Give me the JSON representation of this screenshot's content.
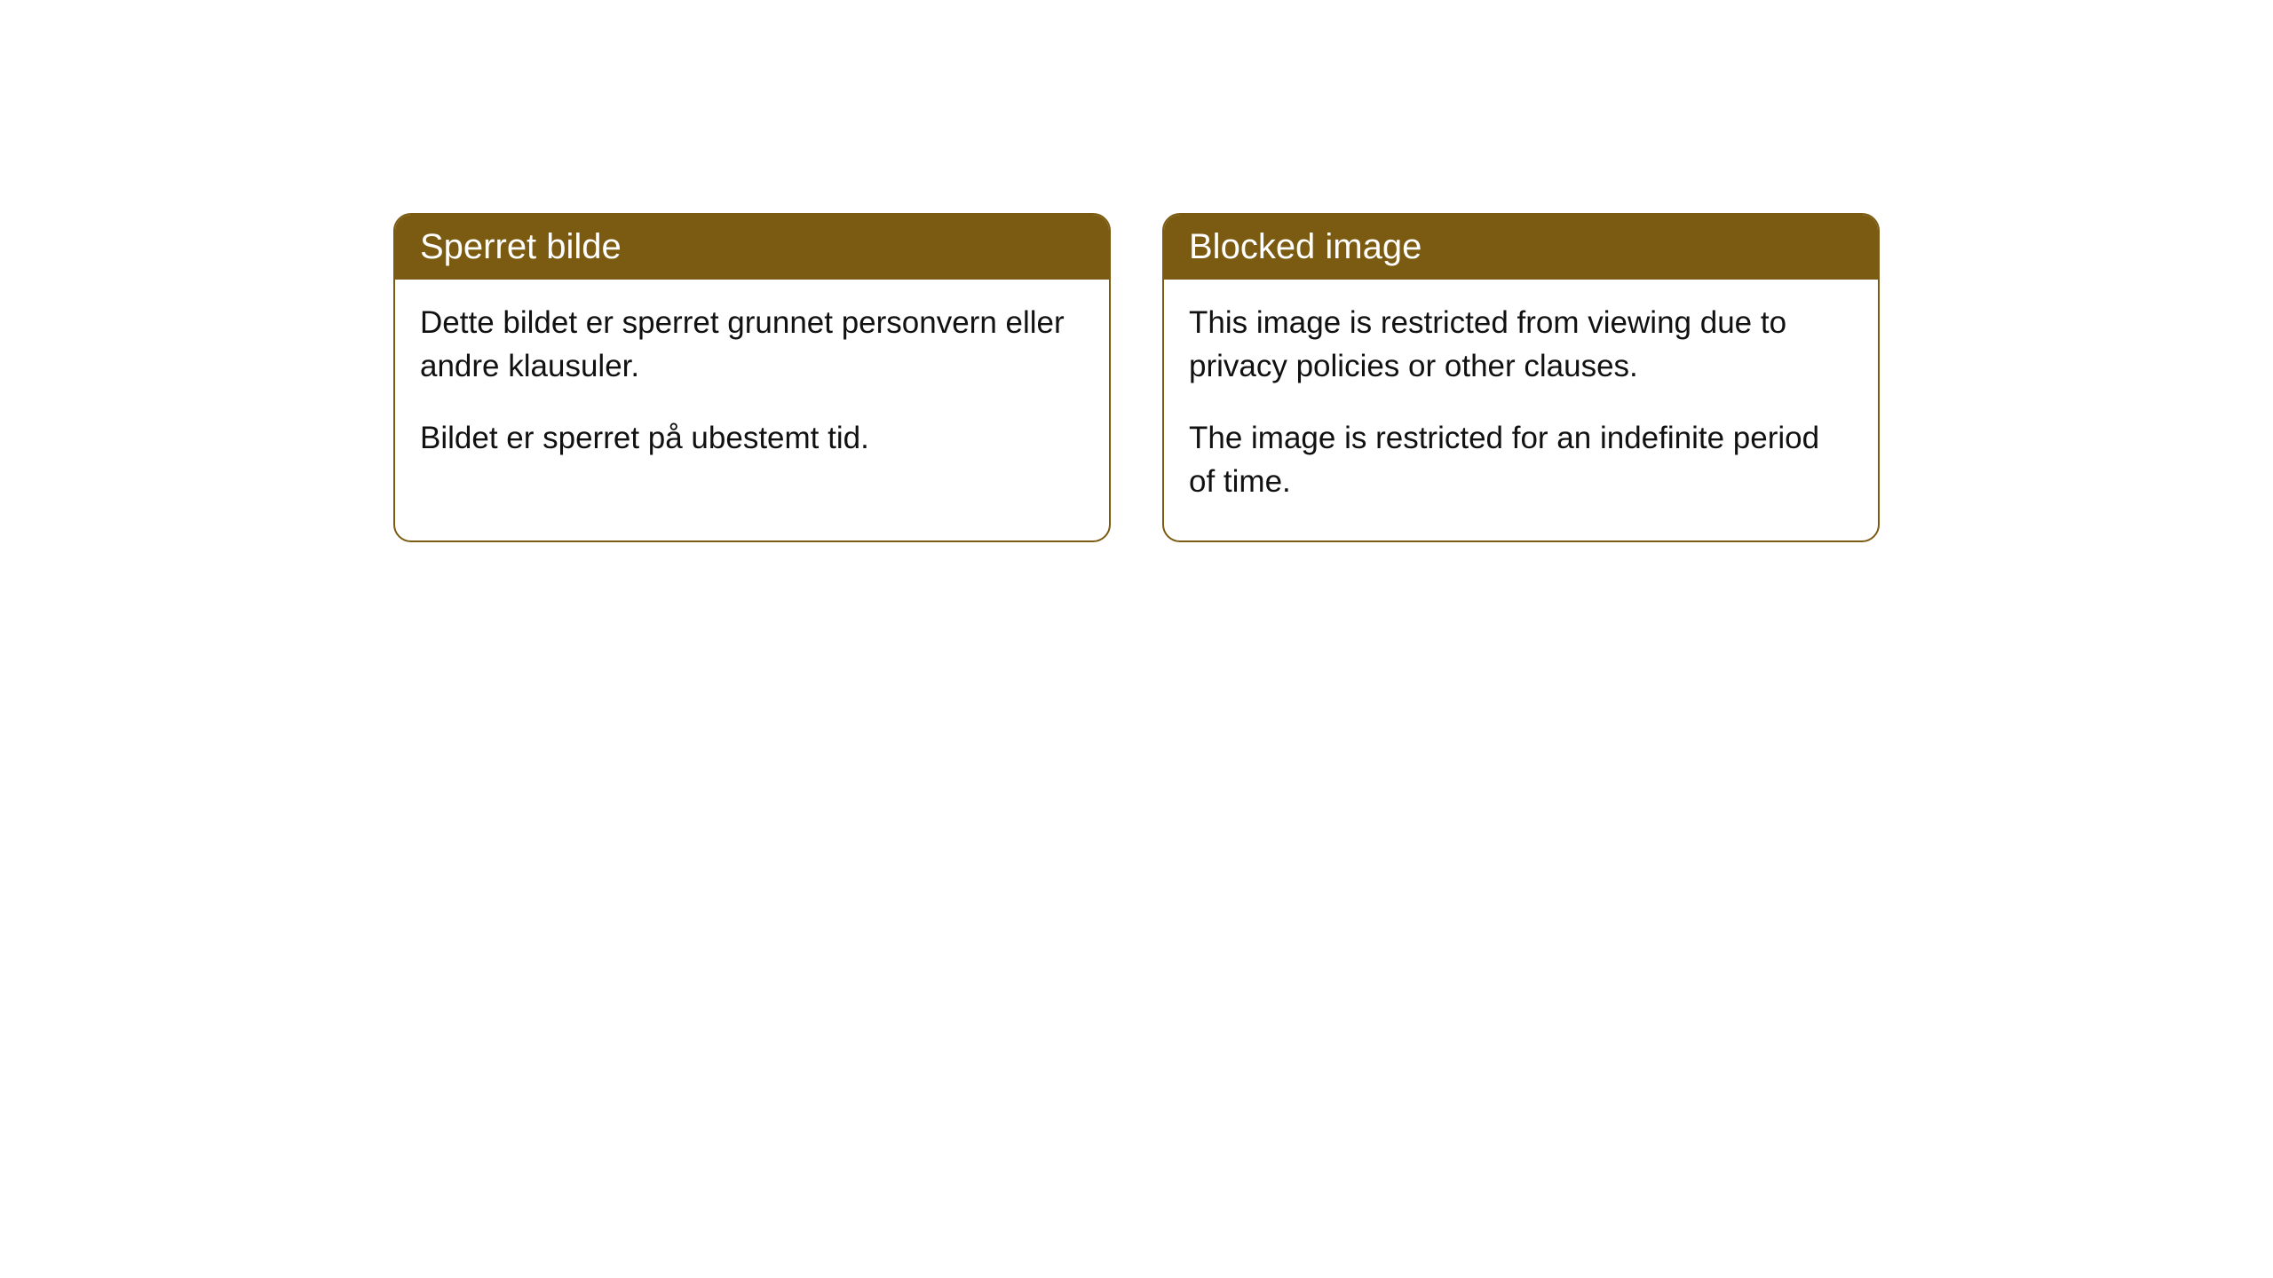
{
  "cards": [
    {
      "title": "Sperret bilde",
      "paragraph1": "Dette bildet er sperret grunnet personvern eller andre klausuler.",
      "paragraph2": "Bildet er sperret på ubestemt tid."
    },
    {
      "title": "Blocked image",
      "paragraph1": "This image is restricted from viewing due to privacy policies or other clauses.",
      "paragraph2": "The image is restricted for an indefinite period of time."
    }
  ],
  "styling": {
    "header_bg_color": "#7b5a11",
    "header_text_color": "#ffffff",
    "border_color": "#7b5a11",
    "body_text_color": "#111111",
    "background_color": "#ffffff",
    "border_radius": 20,
    "header_fontsize": 40,
    "body_fontsize": 35
  }
}
